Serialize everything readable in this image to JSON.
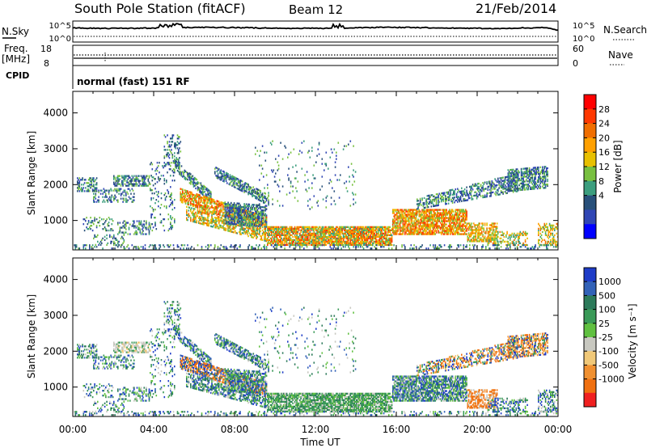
{
  "header": {
    "station": "South Pole Station (fitACF)",
    "beam": "Beam 12",
    "date": "21/Feb/2014"
  },
  "chart_data": [
    {
      "type": "line",
      "panel": "noise",
      "left_label": "N.Sky",
      "right_label": "N.Search",
      "left_ticks": [
        "10^5",
        "10^0"
      ],
      "right_ticks": [
        "10^5",
        "10^0"
      ],
      "x_range_hours": [
        0,
        24
      ]
    },
    {
      "type": "line",
      "panel": "frequency",
      "left_label": "Freq.",
      "left_unit": "[MHz]",
      "left_ticks": [
        "18",
        "8"
      ],
      "right_label": "Nave",
      "right_ticks": [
        "60",
        "0"
      ],
      "cpid_label": "CPID",
      "cpid_value": "normal (fast) 151 RF"
    },
    {
      "type": "heatmap",
      "panel": "power",
      "ylabel": "Slant Range [km]",
      "ylim": [
        180,
        4600
      ],
      "yticks": [
        1000,
        2000,
        3000,
        4000
      ],
      "colorbar_label": "Power [dB]",
      "colorbar_ticks": [
        "28",
        "24",
        "20",
        "16",
        "12",
        "8",
        "4"
      ],
      "colorbar_colors": [
        "#ff0000",
        "#ff3800",
        "#f06e00",
        "#ffa000",
        "#e8c000",
        "#78c040",
        "#3c9e7e",
        "#28507a",
        "#3046b4",
        "#0000ff"
      ]
    },
    {
      "type": "heatmap",
      "panel": "velocity",
      "ylabel": "Slant Range [km]",
      "ylim": [
        180,
        4600
      ],
      "yticks": [
        1000,
        2000,
        3000,
        4000
      ],
      "xlabel": "Time UT",
      "xticks": [
        "00:00",
        "04:00",
        "08:00",
        "12:00",
        "16:00",
        "20:00",
        "00:00"
      ],
      "colorbar_label": "Velocity [m s⁻¹]",
      "colorbar_ticks": [
        "1000",
        "500",
        "100",
        "25",
        "-25",
        "-100",
        "-500",
        "-1000"
      ],
      "colorbar_colors": [
        "#1e3cc8",
        "#3262b8",
        "#2c7a5a",
        "#3a9a58",
        "#60c040",
        "#c8c8c0",
        "#f0c878",
        "#f09030",
        "#f07010",
        "#f02020"
      ]
    }
  ]
}
